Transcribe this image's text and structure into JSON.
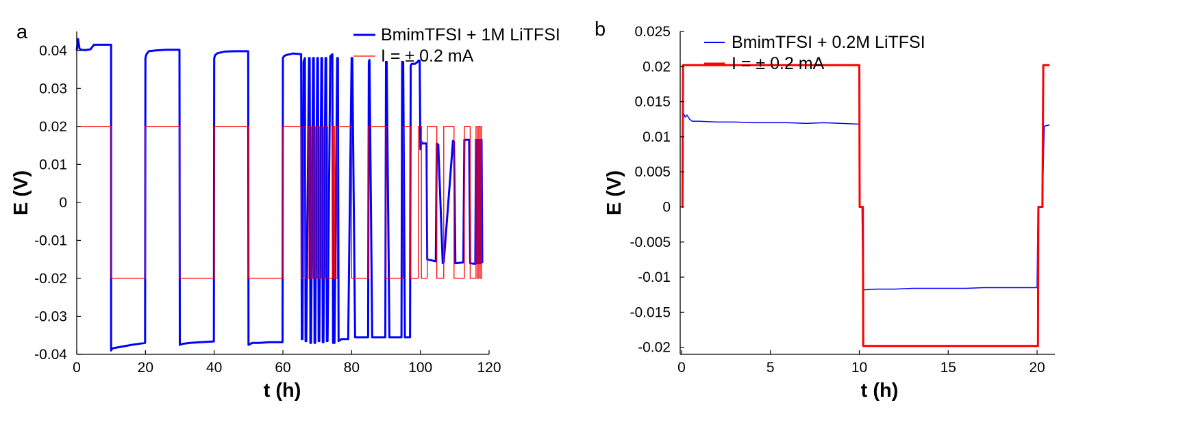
{
  "chart_data": [
    {
      "panel_label": "a",
      "type": "line",
      "xlabel": "t (h)",
      "ylabel": "E (V)",
      "xlim": [
        0,
        120
      ],
      "ylim": [
        -0.04,
        0.045
      ],
      "xticks": [
        0,
        20,
        40,
        60,
        80,
        100,
        120
      ],
      "yticks": [
        -0.04,
        -0.03,
        -0.02,
        -0.01,
        0,
        0.01,
        0.02,
        0.03,
        0.04
      ],
      "xtick_labels": [
        "0",
        "20",
        "40",
        "60",
        "80",
        "100",
        "120"
      ],
      "ytick_labels": [
        "-0.04",
        "-0.03",
        "-0.02",
        "-0.01",
        "0",
        "0.01",
        "0.02",
        "0.03",
        "0.04"
      ],
      "legend": {
        "placement": "top-right"
      },
      "series": [
        {
          "name": "BmimTFSI + 1M LiTFSI",
          "color": "#0000ff",
          "width": 3,
          "x": [
            0,
            0.4,
            0.8,
            1.2,
            2.5,
            4,
            5,
            6,
            10,
            10,
            10.3,
            11,
            13,
            16,
            19.9,
            20,
            20.3,
            21,
            23,
            26,
            29.9,
            30,
            30.3,
            31,
            33,
            36,
            39.9,
            40,
            40.3,
            41,
            43,
            46,
            49.9,
            50,
            50.3,
            51,
            53,
            56,
            59.9,
            60,
            60.3,
            61,
            63,
            65.3,
            65.5,
            65.7,
            66,
            66.4,
            66.6,
            66.8,
            67.6,
            67.8,
            68,
            68.2,
            68.8,
            69,
            69.2,
            69.4,
            70,
            70.2,
            70.4,
            70.6,
            71.2,
            71.4,
            71.6,
            71.8,
            72.4,
            72.6,
            72.8,
            73,
            73.8,
            74.4,
            74.6,
            75,
            75.8,
            76,
            76.2,
            77,
            79,
            80,
            80.2,
            81,
            84.8,
            85,
            85.2,
            86,
            89.8,
            90,
            90.2,
            91,
            94.5,
            94.7,
            95,
            95.5,
            97,
            97.2,
            97.5,
            98.5,
            99.2,
            99.4,
            99.8,
            100,
            100.3,
            100.5,
            101.8,
            102,
            104.5,
            104.8,
            105.2,
            106.5,
            106.8,
            109.5,
            109.8,
            110.2,
            112.5,
            112.8,
            114.2,
            114.5,
            116,
            116.2,
            116.4,
            116.6,
            116.8,
            117,
            117.2,
            117.4,
            117.6,
            117.8,
            118
          ],
          "y": [
            0.04,
            0.043,
            0.0405,
            0.0402,
            0.0401,
            0.0403,
            0.0415,
            0.0415,
            0.0415,
            -0.039,
            -0.0385,
            -0.0383,
            -0.038,
            -0.0375,
            -0.037,
            0.038,
            0.039,
            0.0398,
            0.04,
            0.0402,
            0.0402,
            -0.0375,
            -0.0374,
            -0.0372,
            -0.037,
            -0.0368,
            -0.0366,
            0.038,
            0.0388,
            0.0393,
            0.0397,
            0.0398,
            0.0398,
            -0.0375,
            -0.0374,
            -0.037,
            -0.037,
            -0.0368,
            -0.0368,
            0.038,
            0.0385,
            0.0388,
            0.0392,
            0.039,
            -0.036,
            -0.036,
            0.037,
            0.038,
            -0.0365,
            -0.0365,
            0.038,
            0.038,
            -0.037,
            -0.037,
            0.038,
            0.038,
            -0.037,
            -0.037,
            0.038,
            0.038,
            -0.0365,
            -0.0365,
            0.038,
            0.038,
            -0.0368,
            -0.0368,
            0.038,
            0.038,
            -0.0365,
            -0.0365,
            0.0385,
            0.039,
            -0.037,
            -0.037,
            0.038,
            0.038,
            -0.0365,
            -0.036,
            -0.036,
            0.038,
            0.038,
            -0.0355,
            -0.0355,
            0.037,
            0.0375,
            -0.0355,
            -0.0355,
            0.037,
            0.037,
            -0.0355,
            -0.0355,
            0.037,
            0.037,
            -0.0355,
            -0.0355,
            0.036,
            0.0365,
            0.0365,
            0.037,
            0.0373,
            0.0373,
            0.014,
            0.016,
            0.0155,
            0.0155,
            -0.015,
            -0.0155,
            0.0155,
            0.0152,
            -0.016,
            -0.0158,
            0.0162,
            0.016,
            -0.016,
            -0.0158,
            0.0165,
            0.0165,
            -0.016,
            -0.0162,
            0.0165,
            -0.016,
            0.0165,
            -0.016,
            0.0165,
            -0.016,
            0.0165,
            -0.016,
            0.0165,
            -0.016
          ]
        },
        {
          "name": "I = ± 0.2 mA",
          "color": "#ff0000",
          "width": 1.3,
          "x": [
            0,
            10,
            10,
            20,
            20,
            30,
            30,
            40,
            40,
            50,
            50,
            60,
            60,
            65.3,
            65.3,
            66,
            66,
            66.6,
            66.6,
            67.6,
            67.6,
            68.2,
            68.2,
            68.8,
            68.8,
            69.4,
            69.4,
            70,
            70,
            70.6,
            70.6,
            71.2,
            71.2,
            71.8,
            71.8,
            72.4,
            72.4,
            73,
            73,
            74.4,
            74.4,
            75,
            75,
            75.8,
            75.8,
            80,
            80,
            85,
            85,
            90,
            90,
            95,
            95,
            97.2,
            97.2,
            99.4,
            99.4,
            100.3,
            100.3,
            102,
            102,
            104.8,
            104.8,
            106.8,
            106.8,
            109.8,
            109.8,
            112.8,
            112.8,
            114.5,
            114.5,
            116.2,
            116.2,
            116.6,
            116.6,
            117,
            117,
            117.4,
            117.4,
            117.8,
            117.8,
            118
          ],
          "y": [
            0.02,
            0.02,
            -0.02,
            -0.02,
            0.02,
            0.02,
            -0.02,
            -0.02,
            0.02,
            0.02,
            -0.02,
            -0.02,
            0.02,
            0.02,
            -0.02,
            -0.02,
            0.02,
            0.02,
            -0.02,
            -0.02,
            0.02,
            0.02,
            -0.02,
            -0.02,
            0.02,
            0.02,
            -0.02,
            -0.02,
            0.02,
            0.02,
            -0.02,
            -0.02,
            0.02,
            0.02,
            -0.02,
            -0.02,
            0.02,
            0.02,
            -0.02,
            -0.02,
            0.02,
            0.02,
            -0.02,
            -0.02,
            0.02,
            0.02,
            -0.02,
            -0.02,
            0.02,
            0.02,
            -0.02,
            -0.02,
            0.02,
            0.02,
            -0.02,
            -0.02,
            0.02,
            0.02,
            -0.02,
            -0.02,
            0.02,
            0.02,
            -0.02,
            -0.02,
            0.02,
            0.02,
            -0.02,
            -0.02,
            0.02,
            0.02,
            -0.02,
            -0.02,
            0.02,
            0.02,
            -0.02,
            -0.02,
            0.02,
            0.02,
            -0.02,
            -0.02,
            0.02,
            0.02
          ]
        }
      ]
    },
    {
      "panel_label": "b",
      "type": "line",
      "xlabel": "t (h)",
      "ylabel": "E (V)",
      "xlim": [
        0,
        21
      ],
      "ylim": [
        -0.021,
        0.025
      ],
      "xticks": [
        0,
        5,
        10,
        15,
        20
      ],
      "yticks": [
        -0.02,
        -0.015,
        -0.01,
        -0.005,
        0,
        0.005,
        0.01,
        0.015,
        0.02,
        0.025
      ],
      "xtick_labels": [
        "0",
        "5",
        "10",
        "15",
        "20"
      ],
      "ytick_labels": [
        "-0.02",
        "-0.015",
        "-0.01",
        "-0.005",
        "0",
        "0.005",
        "0.01",
        "0.015",
        "0.02",
        "0.025"
      ],
      "legend": {
        "placement": "top-left"
      },
      "series": [
        {
          "name": "BmimTFSI + 0.2M LiTFSI",
          "color": "#0000ff",
          "width": 1.5,
          "x": [
            0.05,
            0.12,
            0.2,
            0.3,
            0.45,
            0.6,
            1,
            2,
            3,
            4,
            5,
            6,
            7,
            8,
            9,
            9.9,
            10,
            10.05,
            10.15,
            10.2,
            10.3,
            11,
            12,
            13,
            14,
            15,
            16,
            17,
            18,
            19,
            20,
            20.05,
            20.1,
            20.2,
            20.3,
            20.4,
            20.7
          ],
          "y": [
            0.013,
            0.0133,
            0.0128,
            0.0131,
            0.0125,
            0.0122,
            0.0122,
            0.0121,
            0.0121,
            0.012,
            0.012,
            0.012,
            0.0119,
            0.012,
            0.0119,
            0.0118,
            0.0118,
            0.0,
            0.0,
            -0.0118,
            -0.0118,
            -0.0117,
            -0.0117,
            -0.0116,
            -0.0116,
            -0.0116,
            -0.0116,
            -0.0115,
            -0.0115,
            -0.0115,
            -0.0115,
            0.0,
            0.0,
            0.0,
            0.0,
            0.0115,
            0.0117
          ]
        },
        {
          "name": "I = ± 0.2 mA",
          "color": "#ff0000",
          "width": 3,
          "x": [
            0,
            0.05,
            0.08,
            10,
            10.02,
            10.2,
            10.22,
            20.05,
            20.07,
            20.3,
            20.35,
            20.7
          ],
          "y": [
            0,
            0,
            0.0202,
            0.0202,
            0,
            0,
            -0.0198,
            -0.0198,
            0,
            0,
            0.0202,
            0.0202
          ]
        }
      ]
    }
  ]
}
